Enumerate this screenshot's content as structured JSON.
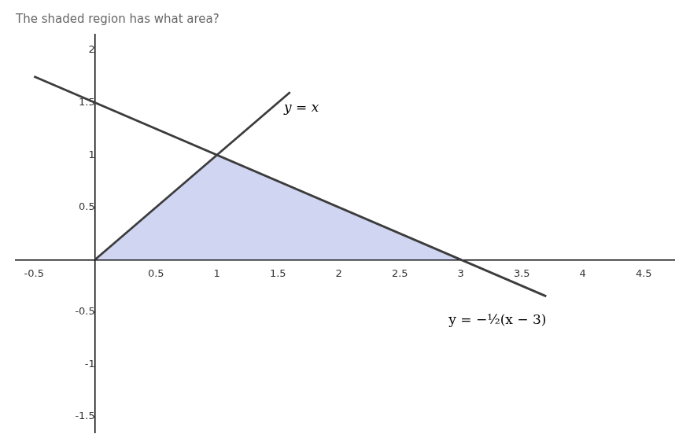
{
  "chart_data": {
    "type": "line",
    "title": "The shaded region has what area?",
    "xlim": [
      -0.65,
      4.75
    ],
    "ylim": [
      -1.65,
      2.15
    ],
    "xticks": [
      -0.5,
      0.5,
      1,
      1.5,
      2,
      2.5,
      3,
      3.5,
      4,
      4.5
    ],
    "yticks": [
      -1.5,
      -1,
      -0.5,
      0.5,
      1,
      1.5,
      2
    ],
    "grid": false,
    "series": [
      {
        "type": "area",
        "x": [
          0,
          1,
          3
        ],
        "values": [
          0,
          1,
          0
        ],
        "color": "#aab4e8"
      },
      {
        "type": "line",
        "x": [
          0.0,
          1.6
        ],
        "values": [
          0.0,
          1.6
        ],
        "color": "#3c3c3c"
      },
      {
        "type": "line",
        "x": [
          -0.5,
          3.7
        ],
        "values": [
          1.75,
          -0.35
        ],
        "color": "#3c3c3c"
      }
    ],
    "annotations": [
      {
        "text": "y = x",
        "x": 1.55,
        "y": 1.38
      },
      {
        "text": "y = −½(x − 3)",
        "x": 2.9,
        "y": -0.52
      }
    ]
  }
}
